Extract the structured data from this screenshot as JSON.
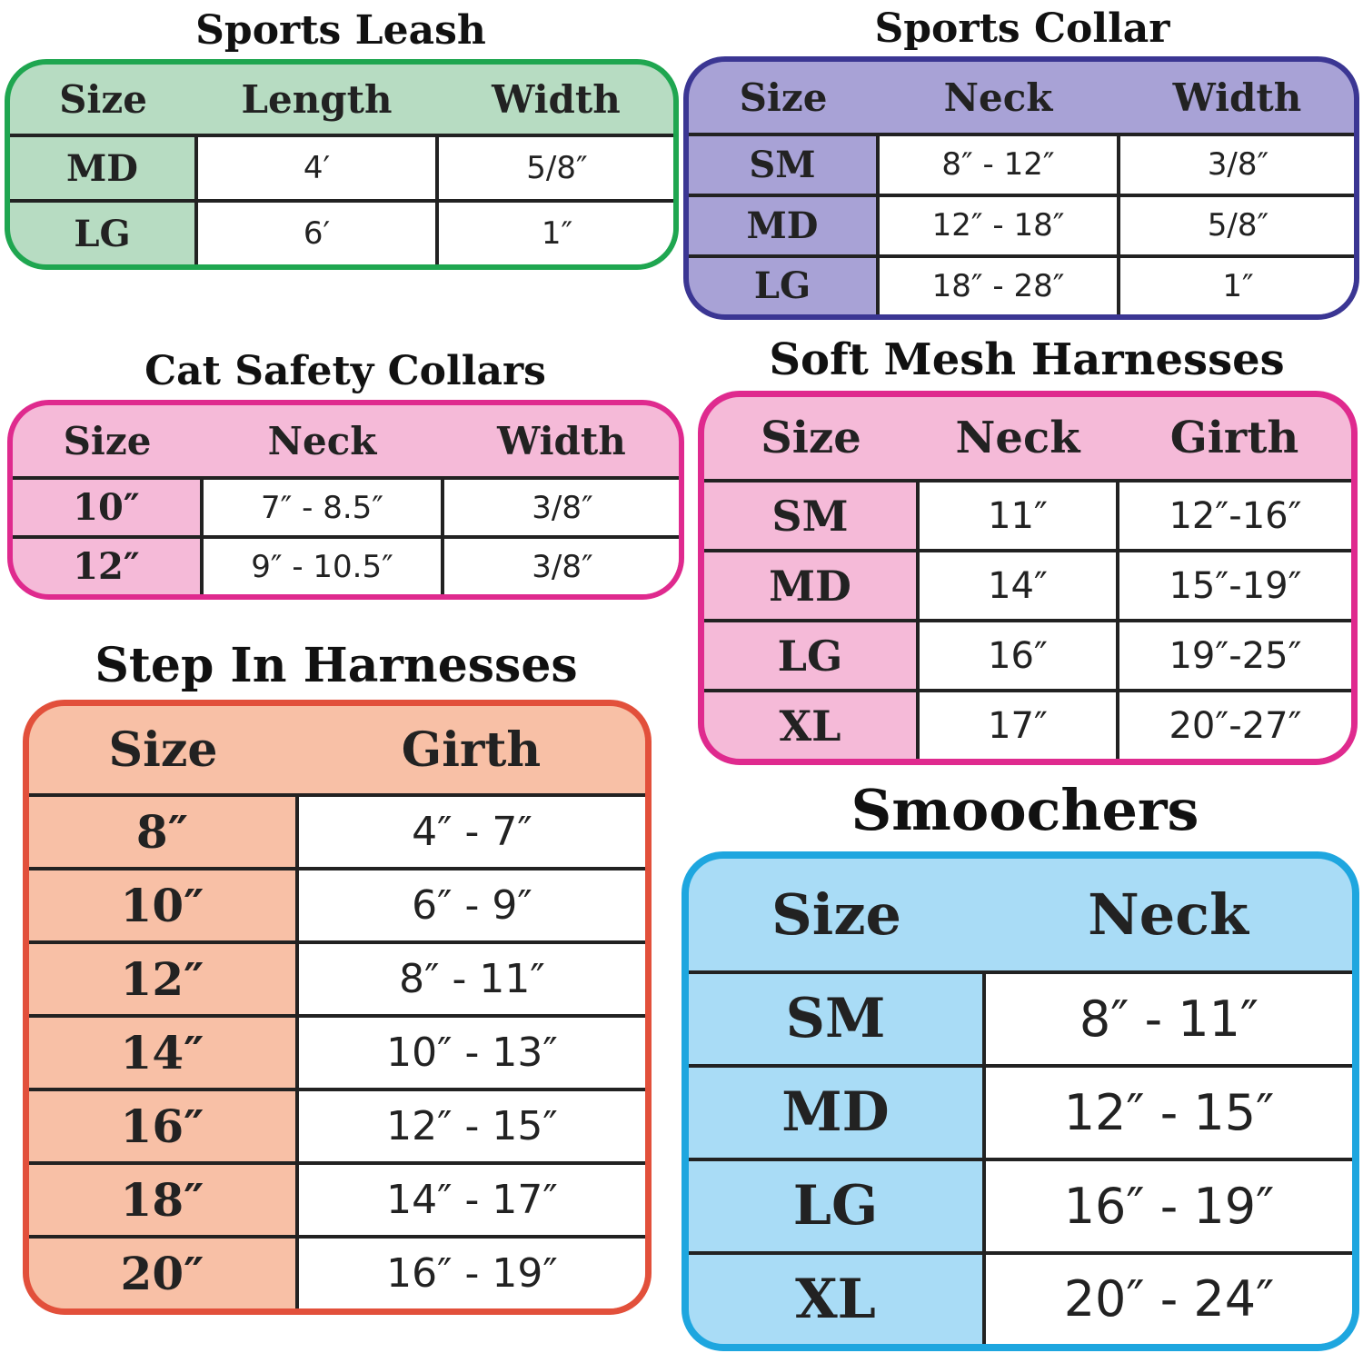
{
  "charts": [
    {
      "id": "sports-leash",
      "title": "Sports Leash",
      "border": "#1fa650",
      "fill": "#b7dcc2",
      "headers": [
        "Size",
        "Length",
        "Width"
      ],
      "rows": [
        [
          "MD",
          "4′",
          "5/8″"
        ],
        [
          "LG",
          "6′",
          "1″"
        ]
      ]
    },
    {
      "id": "sports-collar",
      "title": "Sports Collar",
      "border": "#3b3693",
      "fill": "#a8a2d6",
      "headers": [
        "Size",
        "Neck",
        "Width"
      ],
      "rows": [
        [
          "SM",
          "8″ - 12″",
          "3/8″"
        ],
        [
          "MD",
          "12″ - 18″",
          "5/8″"
        ],
        [
          "LG",
          "18″ - 28″",
          "1″"
        ]
      ]
    },
    {
      "id": "cat-safety-collars",
      "title": "Cat Safety Collars",
      "border": "#df2a8e",
      "fill": "#f5bad8",
      "headers": [
        "Size",
        "Neck",
        "Width"
      ],
      "rows": [
        [
          "10″",
          "7″ - 8.5″",
          "3/8″"
        ],
        [
          "12″",
          "9″ - 10.5″",
          "3/8″"
        ]
      ]
    },
    {
      "id": "soft-mesh-harnesses",
      "title": "Soft Mesh Harnesses",
      "border": "#df2a8e",
      "fill": "#f5bad8",
      "headers": [
        "Size",
        "Neck",
        "Girth"
      ],
      "rows": [
        [
          "SM",
          "11″",
          "12″-16″"
        ],
        [
          "MD",
          "14″",
          "15″-19″"
        ],
        [
          "LG",
          "16″",
          "19″-25″"
        ],
        [
          "XL",
          "17″",
          "20″-27″"
        ]
      ]
    },
    {
      "id": "step-in-harnesses",
      "title": "Step In Harnesses",
      "border": "#e2503b",
      "fill": "#f8c0a6",
      "headers": [
        "Size",
        "Girth"
      ],
      "rows": [
        [
          "8″",
          "4″ - 7″"
        ],
        [
          "10″",
          "6″ - 9″"
        ],
        [
          "12″",
          "8″ - 11″"
        ],
        [
          "14″",
          "10″ - 13″"
        ],
        [
          "16″",
          "12″ - 15″"
        ],
        [
          "18″",
          "14″ - 17″"
        ],
        [
          "20″",
          "16″ - 19″"
        ]
      ]
    },
    {
      "id": "smoochers",
      "title": "Smoochers",
      "border": "#1ea6df",
      "fill": "#a9dcf6",
      "headers": [
        "Size",
        "Neck"
      ],
      "rows": [
        [
          "SM",
          "8″ - 11″"
        ],
        [
          "MD",
          "12″ - 15″"
        ],
        [
          "LG",
          "16″ - 19″"
        ],
        [
          "XL",
          "20″ - 24″"
        ]
      ]
    }
  ]
}
